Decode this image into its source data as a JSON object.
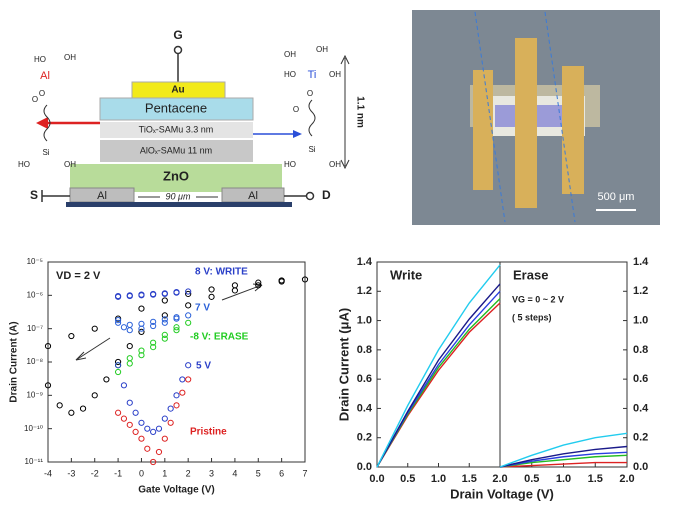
{
  "device": {
    "gate": "G",
    "au": "Au",
    "pentacene": "Pentacene",
    "tiox": "TiOₓ-SAMu 3.3 nm",
    "alox": "AlOₓ-SAMu 11 nm",
    "zno": "ZnO",
    "al_left": "Al",
    "al_right": "Al",
    "channel": "90 μm",
    "source": "S",
    "drain": "D",
    "thickness": "1.1 nm",
    "left_molecule": [
      "HO",
      "OH",
      "Al",
      "O",
      "O",
      "Si",
      "HO",
      "OH"
    ],
    "right_molecule": [
      "OH",
      "OH",
      "HO",
      "Ti",
      "OH",
      "O",
      "O",
      "Si",
      "HO",
      "OH"
    ]
  },
  "photo": {
    "scale_bar": "500 μm"
  },
  "chart_data": [
    {
      "type": "scatter",
      "xlabel": "Gate Voltage (V)",
      "ylabel": "Drain Current (A)",
      "annotations": [
        "VD = 2 V"
      ],
      "xlim": [
        -4,
        7
      ],
      "xticks": [
        -4,
        -3,
        -2,
        -1,
        0,
        1,
        2,
        3,
        4,
        5,
        6,
        7
      ],
      "ylim": [
        1e-11,
        1e-05
      ],
      "log_y": true,
      "yticks": [
        {
          "value": 1e-11,
          "label": "10⁻¹¹"
        },
        {
          "value": 1e-10,
          "label": "10⁻¹⁰"
        },
        {
          "value": 1e-09,
          "label": "10⁻⁹"
        },
        {
          "value": 1e-08,
          "label": "10⁻⁸"
        },
        {
          "value": 1e-07,
          "label": "10⁻⁷"
        },
        {
          "value": 1e-06,
          "label": "10⁻⁶"
        },
        {
          "value": 1e-05,
          "label": "10⁻⁵"
        }
      ],
      "series": [
        {
          "color": "#000000",
          "x": [
            -4,
            -3.5,
            -3,
            -2.5,
            -2,
            -1.5,
            -1,
            -0.5,
            0,
            1,
            2,
            3,
            4,
            5,
            6,
            7,
            6,
            5,
            4,
            3,
            2,
            1,
            0,
            -1,
            -2,
            -3,
            -4
          ],
          "values": [
            2e-09,
            5e-10,
            3e-10,
            4e-10,
            1e-09,
            3e-09,
            1e-08,
            3e-08,
            8e-08,
            2.5e-07,
            5e-07,
            9e-07,
            1.4e-06,
            2e-06,
            2.6e-06,
            3e-06,
            2.8e-06,
            2.4e-06,
            2e-06,
            1.5e-06,
            1.1e-06,
            7e-07,
            4e-07,
            2e-07,
            1e-07,
            6e-08,
            3e-08
          ]
        },
        {
          "name": "8 V: WRITE",
          "color": "#2a3fc8",
          "x": [
            -1,
            -0.5,
            0,
            0.5,
            1,
            1.5,
            2,
            1.5,
            1,
            0.5,
            0,
            -0.5,
            -1
          ],
          "values": [
            9e-07,
            9.5e-07,
            1e-06,
            1.05e-06,
            1.1e-06,
            1.2e-06,
            1.3e-06,
            1.25e-06,
            1.15e-06,
            1.1e-06,
            1.05e-06,
            1e-06,
            9.5e-07
          ]
        },
        {
          "name": "7 V",
          "color": "#2a60d8",
          "x": [
            -1,
            -0.75,
            -0.5,
            0,
            0.5,
            1,
            1.5,
            2,
            1.5,
            1,
            0.5,
            0,
            -0.5,
            -1
          ],
          "values": [
            1.5e-07,
            1.1e-07,
            9e-08,
            1e-07,
            1.2e-07,
            1.5e-07,
            2e-07,
            2.5e-07,
            2.2e-07,
            1.9e-07,
            1.6e-07,
            1.4e-07,
            1.3e-07,
            1.8e-07
          ]
        },
        {
          "name": "-8 V: ERASE",
          "color": "#22cc22",
          "x": [
            -1,
            -0.5,
            0,
            0.5,
            1,
            1.5,
            2,
            1.5,
            1,
            0.5,
            0,
            -0.5,
            -1
          ],
          "values": [
            5e-09,
            9e-09,
            1.6e-08,
            2.8e-08,
            5e-08,
            9e-08,
            1.5e-07,
            1.1e-07,
            6.5e-08,
            3.8e-08,
            2.2e-08,
            1.3e-08,
            8e-09
          ]
        },
        {
          "name": "5 V",
          "color": "#2a3fc8",
          "x": [
            -1,
            -0.75,
            -0.5,
            -0.25,
            0,
            0.25,
            0.5,
            0.75,
            1,
            1.25,
            1.5,
            1.75,
            2
          ],
          "values": [
            8e-09,
            2e-09,
            6e-10,
            3e-10,
            1.5e-10,
            1e-10,
            8e-11,
            1e-10,
            2e-10,
            4e-10,
            1e-09,
            3e-09,
            8e-09
          ]
        },
        {
          "name": "Pristine",
          "color": "#dd2222",
          "x": [
            -1,
            -0.75,
            -0.5,
            -0.25,
            0,
            0.25,
            0.5,
            0.75,
            1,
            1.25,
            1.5,
            1.75,
            2
          ],
          "values": [
            3e-10,
            2e-10,
            1.3e-10,
            8e-11,
            5e-11,
            2.5e-11,
            1e-11,
            2e-11,
            5e-11,
            1.5e-10,
            5e-10,
            1.2e-09,
            3e-09
          ]
        }
      ]
    },
    {
      "type": "line",
      "title": "Write",
      "xlabel": "Drain Voltage (V)",
      "ylabel": "Drain Current (μA)",
      "x": [
        0,
        0.5,
        1,
        1.5,
        2
      ],
      "xlim": [
        0,
        2
      ],
      "xticks": [
        {
          "value": 0,
          "label": "0.0"
        },
        0.5,
        {
          "value": 1,
          "label": "1.0"
        },
        1.5,
        {
          "value": 2,
          "label": "2.0"
        }
      ],
      "ylim": [
        0,
        1.4
      ],
      "yticks": [
        {
          "value": 0,
          "label": "0.0"
        },
        0.2,
        0.4,
        0.6,
        0.8,
        {
          "value": 1,
          "label": "1.0"
        },
        1.2,
        1.4
      ],
      "series": [
        {
          "color": "#dd2222",
          "values": [
            0,
            0.35,
            0.66,
            0.92,
            1.12
          ]
        },
        {
          "color": "#22bb22",
          "values": [
            0,
            0.36,
            0.68,
            0.94,
            1.15
          ]
        },
        {
          "color": "#2a3fe0",
          "values": [
            0,
            0.37,
            0.7,
            0.97,
            1.2
          ]
        },
        {
          "color": "#1a1a8a",
          "values": [
            0,
            0.38,
            0.73,
            1.01,
            1.25
          ]
        },
        {
          "color": "#22ccee",
          "values": [
            0,
            0.42,
            0.8,
            1.12,
            1.38
          ]
        }
      ]
    },
    {
      "type": "line",
      "title": "Erase",
      "annotations": [
        "VG = 0 ~ 2 V",
        "( 5 steps)"
      ],
      "x": [
        0,
        0.5,
        1,
        1.5,
        2
      ],
      "xlim": [
        0,
        2
      ],
      "xticks": [
        0.5,
        {
          "value": 1,
          "label": "1.0"
        },
        1.5,
        {
          "value": 2,
          "label": "2.0"
        }
      ],
      "ylim": [
        0,
        1.4
      ],
      "yticks": [
        {
          "value": 0,
          "label": "0.0"
        },
        0.2,
        0.4,
        0.6,
        0.8,
        {
          "value": 1,
          "label": "1.0"
        },
        1.2,
        1.4
      ],
      "series": [
        {
          "color": "#dd2222",
          "values": [
            0,
            0.01,
            0.02,
            0.03,
            0.03
          ]
        },
        {
          "color": "#22bb22",
          "values": [
            0,
            0.03,
            0.05,
            0.07,
            0.08
          ]
        },
        {
          "color": "#2a3fe0",
          "values": [
            0,
            0.04,
            0.07,
            0.09,
            0.1
          ]
        },
        {
          "color": "#1a1a8a",
          "values": [
            0,
            0.05,
            0.09,
            0.12,
            0.14
          ]
        },
        {
          "color": "#22ccee",
          "values": [
            0,
            0.08,
            0.15,
            0.2,
            0.23
          ]
        }
      ]
    }
  ]
}
